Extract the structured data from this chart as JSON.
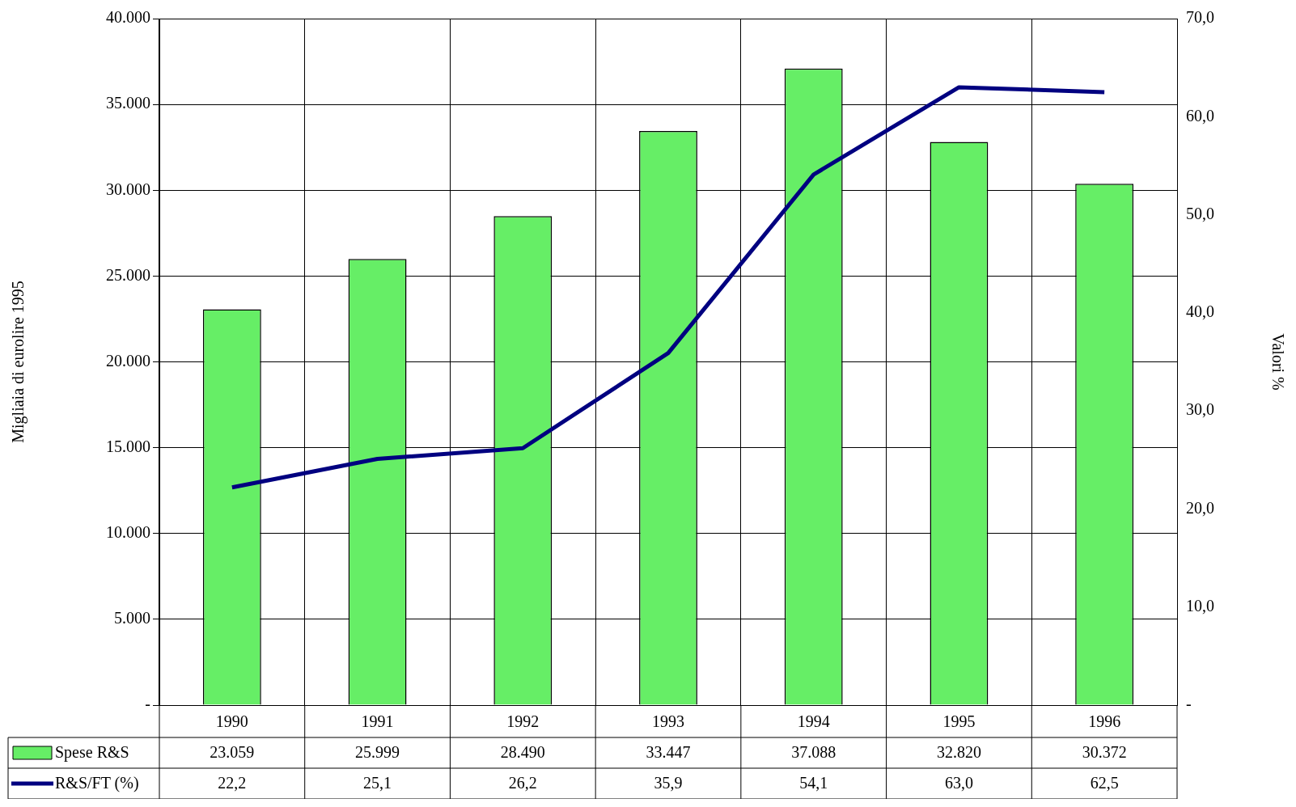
{
  "chart_data": {
    "type": "bar",
    "ylabel": "Migliaia di eurolire 1995",
    "y2label": "Valori %",
    "categories": [
      "1990",
      "1991",
      "1992",
      "1993",
      "1994",
      "1995",
      "1996"
    ],
    "series": [
      {
        "name": "Spese R&S",
        "color": "#66ee66",
        "values": [
          23059,
          25999,
          28490,
          33447,
          37088,
          32820,
          30372
        ],
        "value_labels": [
          "23.059",
          "25.999",
          "28.490",
          "33.447",
          "37.088",
          "32.820",
          "30.372"
        ]
      },
      {
        "name": "R&S/FT (%)",
        "type": "line",
        "axis": "y2",
        "color": "#000080",
        "values": [
          22.2,
          25.1,
          26.2,
          35.9,
          54.1,
          63.0,
          62.5
        ],
        "value_labels": [
          "22,2",
          "25,1",
          "26,2",
          "35,9",
          "54,1",
          "63,0",
          "62,5"
        ]
      }
    ],
    "ylim": [
      0,
      40000
    ],
    "yticks": [
      {
        "value": 0,
        "label": "-"
      },
      {
        "value": 5000,
        "label": "5.000"
      },
      {
        "value": 10000,
        "label": "10.000"
      },
      {
        "value": 15000,
        "label": "15.000"
      },
      {
        "value": 20000,
        "label": "20.000"
      },
      {
        "value": 25000,
        "label": "25.000"
      },
      {
        "value": 30000,
        "label": "30.000"
      },
      {
        "value": 35000,
        "label": "35.000"
      },
      {
        "value": 40000,
        "label": "40.000"
      }
    ],
    "y2lim": [
      0,
      70
    ],
    "y2ticks": [
      {
        "value": 0,
        "label": "-"
      },
      {
        "value": 10,
        "label": "10,0"
      },
      {
        "value": 20,
        "label": "20,0"
      },
      {
        "value": 30,
        "label": "30,0"
      },
      {
        "value": 40,
        "label": "40,0"
      },
      {
        "value": 50,
        "label": "50,0"
      },
      {
        "value": 60,
        "label": "60,0"
      },
      {
        "value": 70,
        "label": "70,0"
      }
    ],
    "grid": true,
    "legend": "bottom left",
    "marker": "none",
    "line_style": "solid"
  }
}
